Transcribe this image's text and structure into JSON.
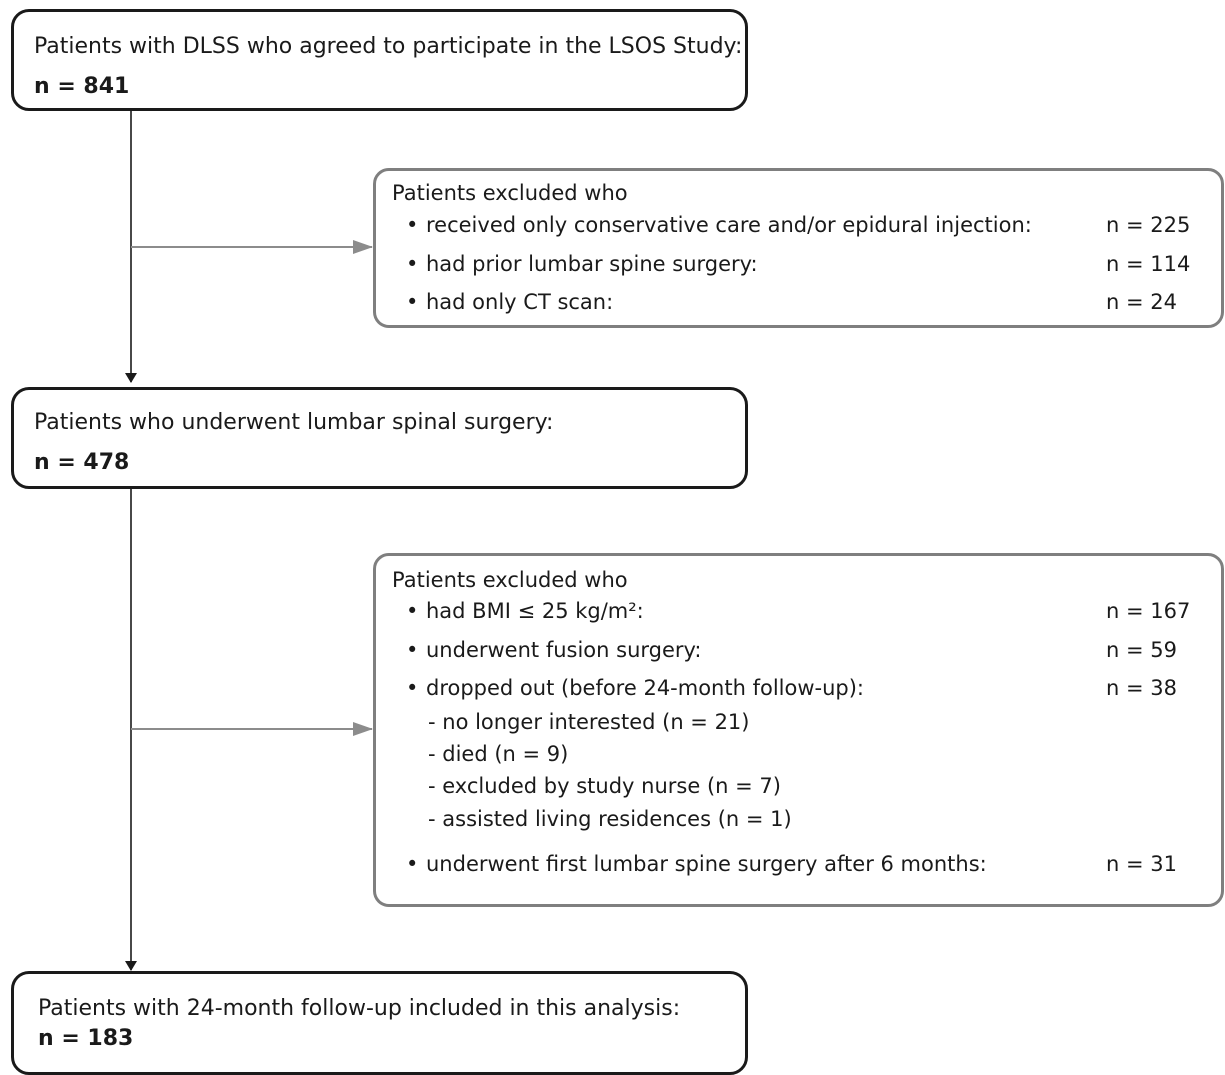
{
  "box1": {
    "title": "Patients with DLSS who agreed to participate in the LSOS Study:",
    "n": "n = 841"
  },
  "excl1": {
    "header": "Patients excluded who",
    "items": [
      {
        "bullet": "•",
        "label": "received only conservative care and/or epidural injection:",
        "value": "n = 225"
      },
      {
        "bullet": "•",
        "label": "had prior lumbar spine surgery:",
        "value": "n = 114"
      },
      {
        "bullet": "•",
        "label": "had only CT scan:",
        "value": "n = 24"
      }
    ]
  },
  "box2": {
    "title": "Patients who underwent lumbar spinal surgery:",
    "n": "n = 478"
  },
  "excl2": {
    "header": "Patients excluded who",
    "items": [
      {
        "bullet": "•",
        "label": "had BMI ≤ 25 kg/m²:",
        "value": "n = 167"
      },
      {
        "bullet": "•",
        "label": "underwent fusion surgery:",
        "value": "n = 59"
      },
      {
        "bullet": "•",
        "label": "dropped out (before 24-month follow-up):",
        "value": "n = 38"
      },
      {
        "bullet": "•",
        "label": "underwent first lumbar spine surgery after 6 months:",
        "value": "n = 31"
      }
    ],
    "subitems": [
      "- no longer interested (n = 21)",
      "- died (n = 9)",
      "- excluded by study nurse (n = 7)",
      "- assisted living residences (n = 1)"
    ]
  },
  "box3": {
    "title": "Patients with 24-month follow-up included in this analysis:",
    "n": "n = 183"
  },
  "colors": {
    "main_border": "#1a1a1a",
    "exclusion_border": "#7f7f7f",
    "arrow_main": "#1a1a1a",
    "arrow_side": "#8c8c8c"
  }
}
